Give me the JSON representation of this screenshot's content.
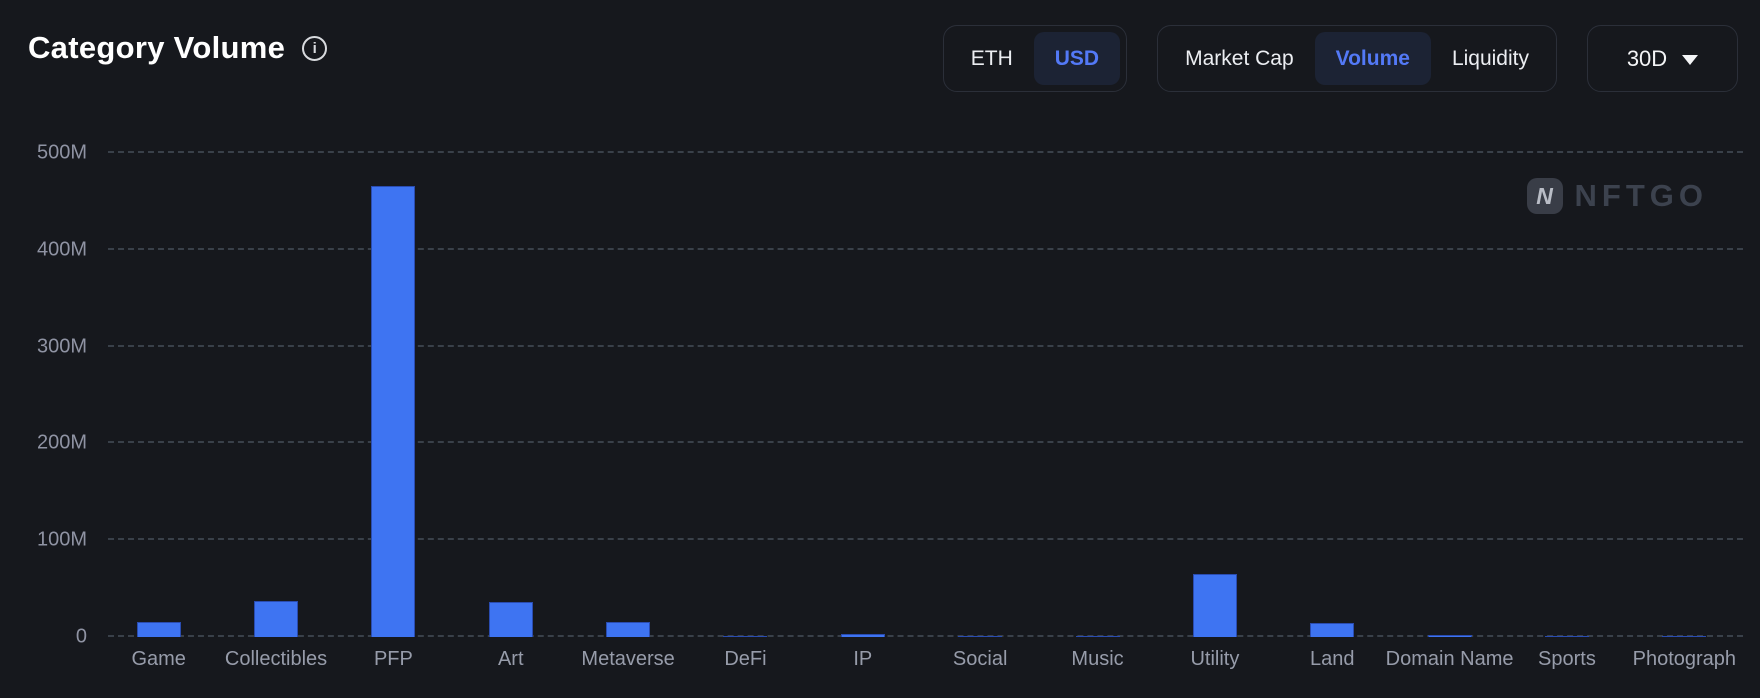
{
  "header": {
    "title": "Category Volume",
    "currency_toggle": {
      "options": [
        "ETH",
        "USD"
      ],
      "selected": "USD"
    },
    "metric_toggle": {
      "options": [
        "Market Cap",
        "Volume",
        "Liquidity"
      ],
      "selected": "Volume"
    },
    "range_dropdown": {
      "value": "30D"
    }
  },
  "watermark": {
    "icon_letter": "N",
    "text": "NFTGO"
  },
  "chart_data": {
    "type": "bar",
    "title": "Category Volume",
    "categories": [
      "Game",
      "Collectibles",
      "PFP",
      "Art",
      "Metaverse",
      "DeFi",
      "IP",
      "Social",
      "Music",
      "Utility",
      "Land",
      "Domain Name",
      "Sports",
      "Photograph"
    ],
    "values": [
      16,
      37,
      466,
      36,
      15,
      1.5,
      3,
      1.5,
      0.8,
      65,
      14,
      2,
      0.4,
      0.3
    ],
    "value_unit": "USD millions",
    "xlabel": "",
    "ylabel": "",
    "ylim": [
      0,
      500
    ],
    "yticks": [
      {
        "value": 0,
        "label": "0"
      },
      {
        "value": 100,
        "label": "100M"
      },
      {
        "value": 200,
        "label": "200M"
      },
      {
        "value": 300,
        "label": "300M"
      },
      {
        "value": 400,
        "label": "400M"
      },
      {
        "value": 500,
        "label": "500M"
      }
    ],
    "legend": "none",
    "grid": "horizontal-dashed",
    "bar_color": "#3e74f2",
    "grid_color": "#394049",
    "axis_label_color": "#8f93a3"
  },
  "colors": {
    "background": "#16181d",
    "accent_blue": "#5379f6",
    "pill_background": "#1c2334",
    "group_border": "#2b2f39",
    "title_text": "#ffffff"
  }
}
